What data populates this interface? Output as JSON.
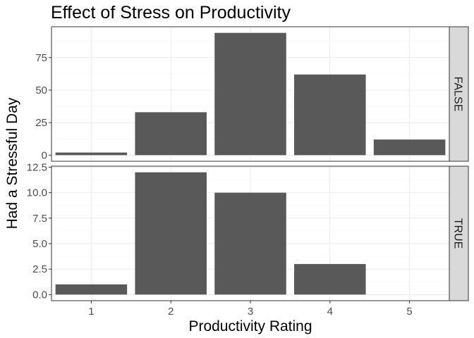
{
  "chart_data": {
    "type": "bar",
    "title": "Effect of Stress on Productivity",
    "xlabel": "Productivity Rating",
    "ylabel": "Had a Stressful Day",
    "categories": [
      "1",
      "2",
      "3",
      "4",
      "5"
    ],
    "grid": true,
    "facets": [
      {
        "label": "FALSE",
        "values": [
          2,
          33,
          94,
          62,
          12
        ],
        "ylim": [
          -4.7,
          98.7
        ],
        "yticks": [
          0,
          25,
          50,
          75
        ],
        "ytick_labels": [
          "0",
          "25",
          "50",
          "75"
        ]
      },
      {
        "label": "TRUE",
        "values": [
          1,
          12,
          10,
          3,
          0
        ],
        "ylim": [
          -0.6,
          12.6
        ],
        "yticks": [
          0,
          2.5,
          5,
          7.5,
          10,
          12.5
        ],
        "ytick_labels": [
          "0.0",
          "2.5",
          "5.0",
          "7.5",
          "10.0",
          "12.5"
        ]
      }
    ],
    "colors": {
      "bar": "#595959",
      "panel_border": "#333333",
      "grid_major": "#ebebeb",
      "grid_minor": "#f5f5f5",
      "strip_fill": "#d9d9d9"
    }
  }
}
